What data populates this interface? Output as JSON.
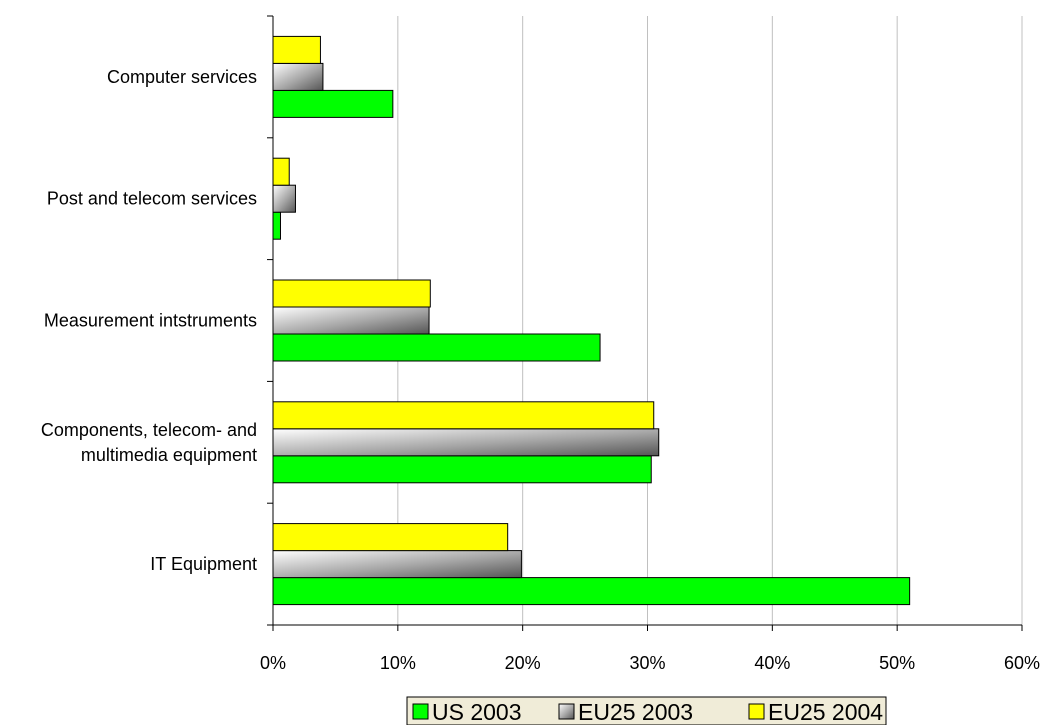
{
  "chart_data": {
    "type": "bar",
    "orientation": "horizontal",
    "categories": [
      "IT Equipment",
      "Components, telecom- and multimedia equipment",
      "Measurement intstruments",
      "Post and telecom services",
      "Computer services"
    ],
    "category_label_lines": [
      [
        "IT Equipment"
      ],
      [
        "Components, telecom- and",
        "multimedia equipment"
      ],
      [
        "Measurement intstruments"
      ],
      [
        "Post and telecom services"
      ],
      [
        "Computer services"
      ]
    ],
    "series": [
      {
        "name": "US 2003",
        "color": "#00ff00",
        "values": [
          51.0,
          30.3,
          26.2,
          0.6,
          9.6
        ]
      },
      {
        "name": "EU25 2003",
        "color": "#a6a6a6",
        "values": [
          19.9,
          30.9,
          12.5,
          1.8,
          4.0
        ]
      },
      {
        "name": "EU25 2004",
        "color": "#ffff00",
        "values": [
          18.8,
          30.5,
          12.6,
          1.3,
          3.8
        ]
      }
    ],
    "xlim": [
      0,
      60
    ],
    "x_ticks": [
      "0%",
      "10%",
      "20%",
      "30%",
      "40%",
      "50%",
      "60%"
    ],
    "x_tick_values": [
      0,
      10,
      20,
      30,
      40,
      50,
      60
    ],
    "title": "",
    "xlabel": "",
    "ylabel": "",
    "grid": "vertical",
    "legend_position": "bottom",
    "gridline_color": "#c0c0c0",
    "legend_background": "#f0ecd8"
  }
}
